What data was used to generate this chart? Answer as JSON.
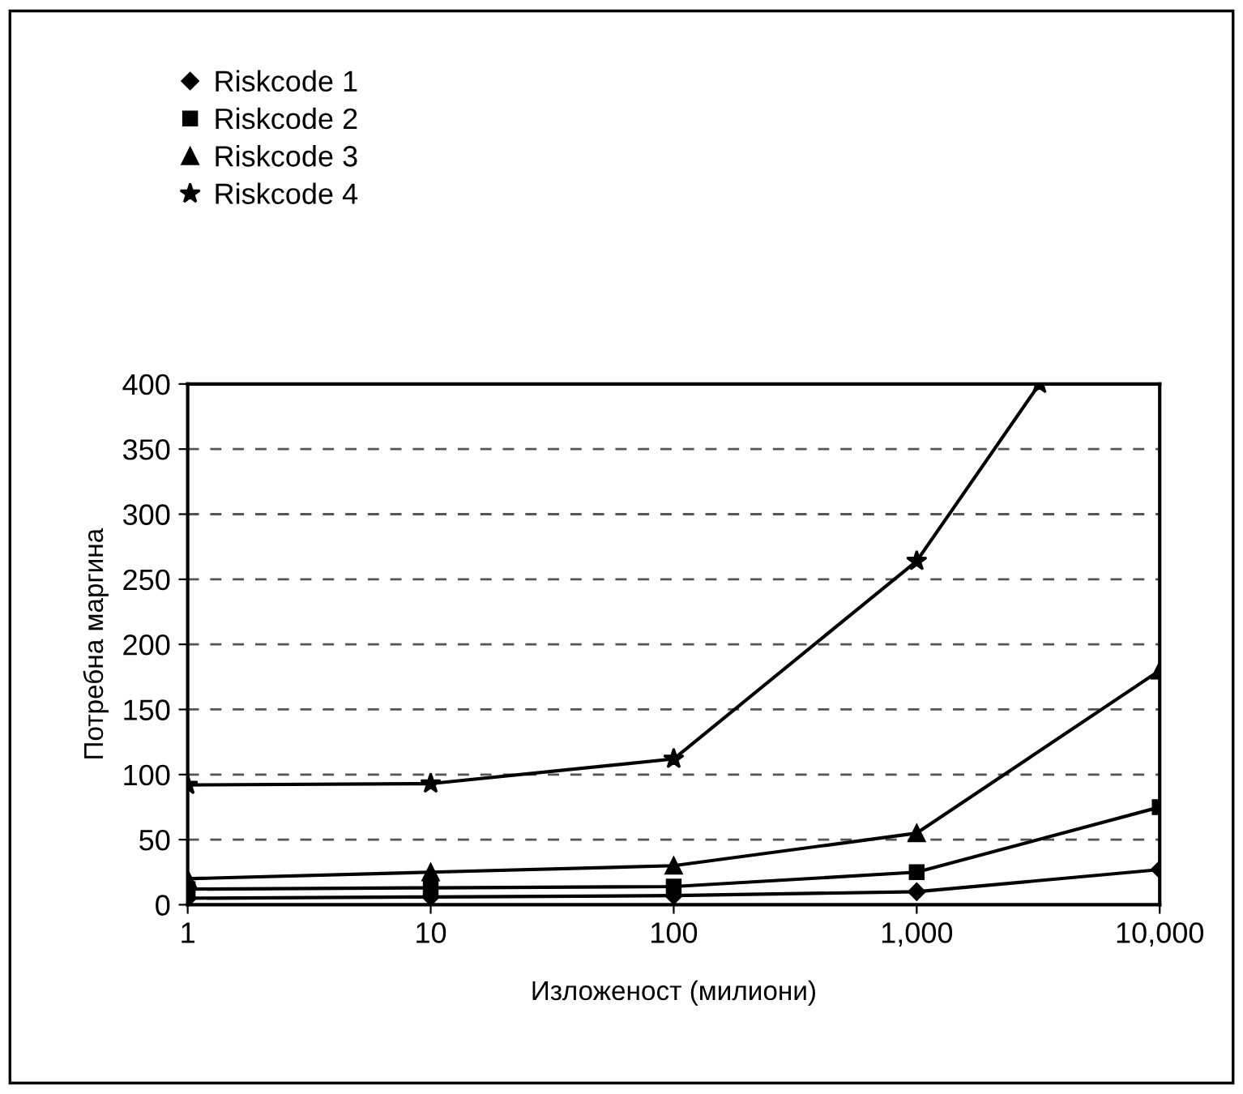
{
  "chart_data": {
    "type": "line",
    "xlabel": "Изложеност (милиони)",
    "ylabel": "Потребна маргина",
    "log": "x",
    "xlim": [
      1,
      10000
    ],
    "xticks": [
      1,
      10,
      100,
      {
        "value": 1000,
        "label": "1,000"
      },
      {
        "value": 10000,
        "label": "10,000"
      }
    ],
    "ylim": [
      0,
      400
    ],
    "yticks": [
      0,
      50,
      100,
      150,
      200,
      250,
      300,
      350,
      400
    ],
    "grid": "y",
    "legend": "top left",
    "x": [
      1,
      10,
      100,
      1000,
      10000
    ],
    "series": [
      {
        "name": "Riskcode 1",
        "color": "#000000",
        "marker": "diamond",
        "values": [
          5,
          6,
          7,
          10,
          27
        ]
      },
      {
        "name": "Riskcode 2",
        "color": "#000000",
        "marker": "square",
        "values": [
          12,
          13,
          14,
          25,
          75
        ]
      },
      {
        "name": "Riskcode 3",
        "color": "#000000",
        "marker": "triangle",
        "values": [
          20,
          25,
          30,
          55,
          180
        ]
      },
      {
        "name": "Riskcode 4",
        "color": "#000000",
        "marker": "star",
        "x": [
          1,
          10,
          100,
          1000,
          3200
        ],
        "values": [
          92,
          93,
          112,
          264,
          400
        ]
      }
    ]
  }
}
